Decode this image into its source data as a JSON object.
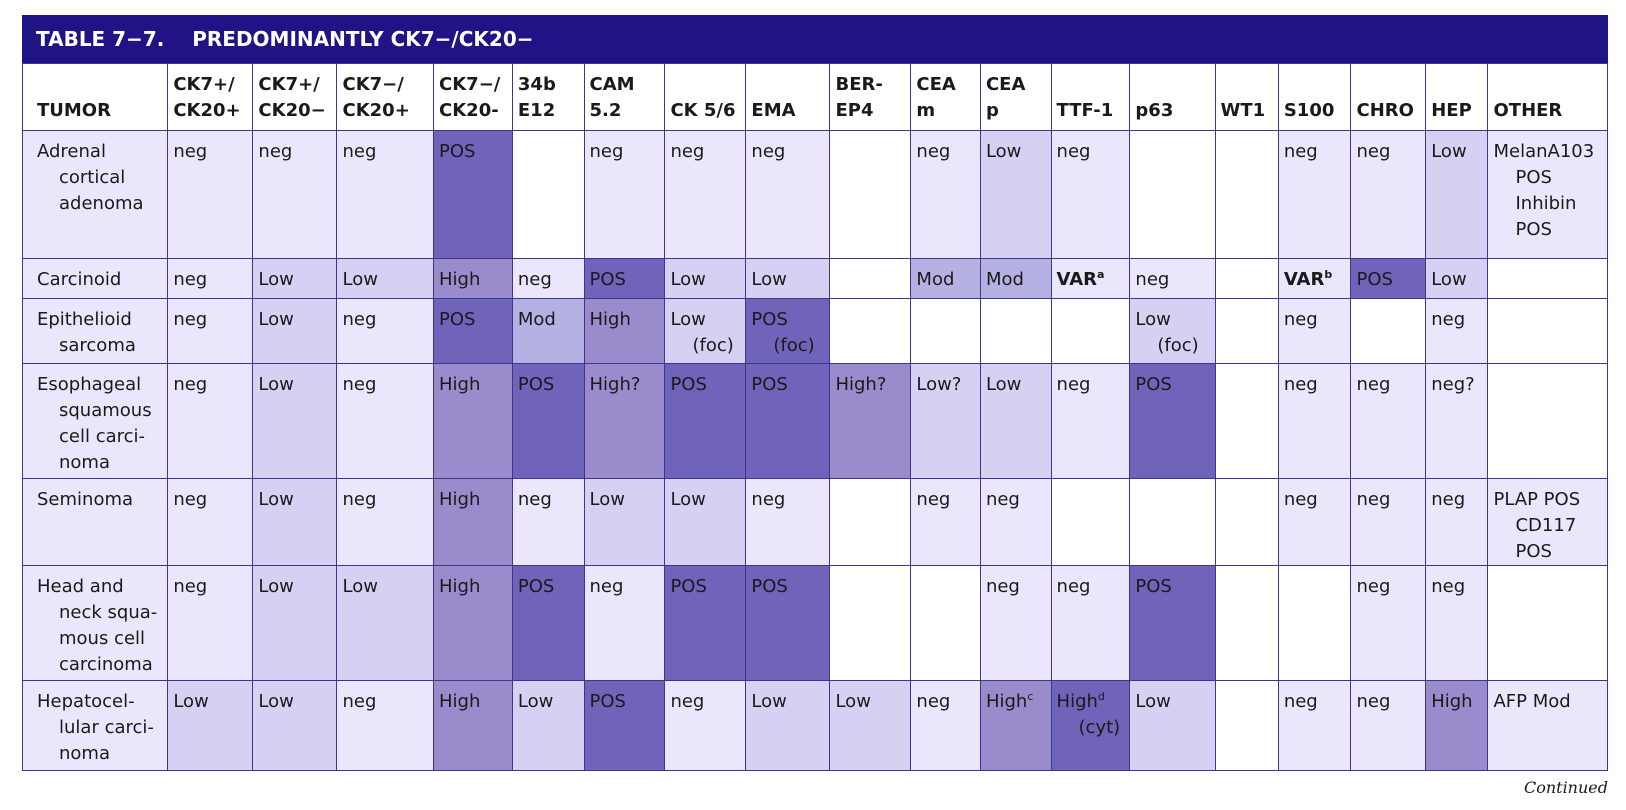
{
  "table": {
    "title_number": "TABLE 7−7.",
    "title_text": "PREDOMINANTLY CK7−/CK20−",
    "headers": [
      "TUMOR",
      "CK7+/\nCK20+",
      "CK7+/\nCK20−",
      "CK7−/\nCK20+",
      "CK7−/\nCK20-",
      "34b\nE12",
      "CAM\n5.2",
      "CK 5/6",
      "EMA",
      "BER-\nEP4",
      "CEA\nm",
      "CEA\np",
      "TTF-1",
      "p63",
      "WT1",
      "S100",
      "CHRO",
      "HEP",
      "OTHER"
    ],
    "shade_colors": {
      "0": "#ffffff",
      "1": "#ebe6fb",
      "2": "#d6d0f3",
      "3": "#b6b1e3",
      "4": "#9a8bcc",
      "5": "#7063ba"
    },
    "rows": [
      {
        "tumor": [
          "Adrenal",
          "cortical",
          "adenoma"
        ],
        "cells": [
          {
            "t": "neg",
            "s": 1
          },
          {
            "t": "neg",
            "s": 1
          },
          {
            "t": "neg",
            "s": 1
          },
          {
            "t": "POS",
            "s": 5
          },
          {
            "t": "",
            "s": 0
          },
          {
            "t": "neg",
            "s": 1
          },
          {
            "t": "neg",
            "s": 1
          },
          {
            "t": "neg",
            "s": 1
          },
          {
            "t": "",
            "s": 0
          },
          {
            "t": "neg",
            "s": 1
          },
          {
            "t": "Low",
            "s": 2
          },
          {
            "t": "neg",
            "s": 1
          },
          {
            "t": "",
            "s": 0
          },
          {
            "t": "",
            "s": 0
          },
          {
            "t": "neg",
            "s": 1
          },
          {
            "t": "neg",
            "s": 1
          },
          {
            "t": "Low",
            "s": 2
          },
          {
            "t": "MelanA103\nPOS\nInhibin\nPOS",
            "s": 1
          }
        ]
      },
      {
        "tumor": [
          "Carcinoid"
        ],
        "cells": [
          {
            "t": "neg",
            "s": 1
          },
          {
            "t": "Low",
            "s": 2
          },
          {
            "t": "Low",
            "s": 2
          },
          {
            "t": "High",
            "s": 4
          },
          {
            "t": "neg",
            "s": 1
          },
          {
            "t": "POS",
            "s": 5
          },
          {
            "t": "Low",
            "s": 2
          },
          {
            "t": "Low",
            "s": 2
          },
          {
            "t": "",
            "s": 0
          },
          {
            "t": "Mod",
            "s": 3
          },
          {
            "t": "Mod",
            "s": 3
          },
          {
            "t": "VAR",
            "sup": "a",
            "bold": true,
            "s": 1
          },
          {
            "t": "neg",
            "s": 1
          },
          {
            "t": "",
            "s": 0
          },
          {
            "t": "VAR",
            "sup": "b",
            "bold": true,
            "s": 1
          },
          {
            "t": "POS",
            "s": 5
          },
          {
            "t": "Low",
            "s": 2
          },
          {
            "t": "",
            "s": 0
          }
        ]
      },
      {
        "tumor": [
          "Epithelioid",
          "sarcoma"
        ],
        "cells": [
          {
            "t": "neg",
            "s": 1
          },
          {
            "t": "Low",
            "s": 2
          },
          {
            "t": "neg",
            "s": 1
          },
          {
            "t": "POS",
            "s": 5
          },
          {
            "t": "Mod",
            "s": 3
          },
          {
            "t": "High",
            "s": 4
          },
          {
            "t": "Low\n(foc)",
            "s": 2
          },
          {
            "t": "POS\n(foc)",
            "s": 5
          },
          {
            "t": "",
            "s": 0
          },
          {
            "t": "",
            "s": 0
          },
          {
            "t": "",
            "s": 0
          },
          {
            "t": "",
            "s": 0
          },
          {
            "t": "Low\n(foc)",
            "s": 2
          },
          {
            "t": "",
            "s": 0
          },
          {
            "t": "neg",
            "s": 1
          },
          {
            "t": "",
            "s": 0
          },
          {
            "t": "neg",
            "s": 1
          },
          {
            "t": "",
            "s": 0
          }
        ]
      },
      {
        "tumor": [
          "Esophageal",
          "squamous",
          "cell carci-",
          "noma"
        ],
        "cells": [
          {
            "t": "neg",
            "s": 1
          },
          {
            "t": "Low",
            "s": 2
          },
          {
            "t": "neg",
            "s": 1
          },
          {
            "t": "High",
            "s": 4
          },
          {
            "t": "POS",
            "s": 5
          },
          {
            "t": "High?",
            "s": 4
          },
          {
            "t": "POS",
            "s": 5
          },
          {
            "t": "POS",
            "s": 5
          },
          {
            "t": "High?",
            "s": 4
          },
          {
            "t": "Low?",
            "s": 2
          },
          {
            "t": "Low",
            "s": 2
          },
          {
            "t": "neg",
            "s": 1
          },
          {
            "t": "POS",
            "s": 5
          },
          {
            "t": "",
            "s": 0
          },
          {
            "t": "neg",
            "s": 1
          },
          {
            "t": "neg",
            "s": 1
          },
          {
            "t": "neg?",
            "s": 1
          },
          {
            "t": "",
            "s": 0
          }
        ]
      },
      {
        "tumor": [
          "Seminoma"
        ],
        "cells": [
          {
            "t": "neg",
            "s": 1
          },
          {
            "t": "Low",
            "s": 2
          },
          {
            "t": "neg",
            "s": 1
          },
          {
            "t": "High",
            "s": 4
          },
          {
            "t": "neg",
            "s": 1
          },
          {
            "t": "Low",
            "s": 2
          },
          {
            "t": "Low",
            "s": 2
          },
          {
            "t": "neg",
            "s": 1
          },
          {
            "t": "",
            "s": 0
          },
          {
            "t": "neg",
            "s": 1
          },
          {
            "t": "neg",
            "s": 1
          },
          {
            "t": "",
            "s": 0
          },
          {
            "t": "",
            "s": 0
          },
          {
            "t": "",
            "s": 0
          },
          {
            "t": "neg",
            "s": 1
          },
          {
            "t": "neg",
            "s": 1
          },
          {
            "t": "neg",
            "s": 1
          },
          {
            "t": "PLAP POS\nCD117 POS",
            "s": 1
          }
        ]
      },
      {
        "tumor": [
          "Head and",
          "neck squa-",
          "mous cell",
          "carcinoma"
        ],
        "cells": [
          {
            "t": "neg",
            "s": 1
          },
          {
            "t": "Low",
            "s": 2
          },
          {
            "t": "Low",
            "s": 2
          },
          {
            "t": "High",
            "s": 4
          },
          {
            "t": "POS",
            "s": 5
          },
          {
            "t": "neg",
            "s": 1
          },
          {
            "t": "POS",
            "s": 5
          },
          {
            "t": "POS",
            "s": 5
          },
          {
            "t": "",
            "s": 0
          },
          {
            "t": "",
            "s": 0
          },
          {
            "t": "neg",
            "s": 1
          },
          {
            "t": "neg",
            "s": 1
          },
          {
            "t": "POS",
            "s": 5
          },
          {
            "t": "",
            "s": 0
          },
          {
            "t": "",
            "s": 0
          },
          {
            "t": "neg",
            "s": 1
          },
          {
            "t": "neg",
            "s": 1
          },
          {
            "t": "",
            "s": 0
          }
        ]
      },
      {
        "tumor": [
          "Hepatocel-",
          "lular carci-",
          "noma"
        ],
        "cells": [
          {
            "t": "Low",
            "s": 2
          },
          {
            "t": "Low",
            "s": 2
          },
          {
            "t": "neg",
            "s": 1
          },
          {
            "t": "High",
            "s": 4
          },
          {
            "t": "Low",
            "s": 2
          },
          {
            "t": "POS",
            "s": 5
          },
          {
            "t": "neg",
            "s": 1
          },
          {
            "t": "Low",
            "s": 2
          },
          {
            "t": "Low",
            "s": 2
          },
          {
            "t": "neg",
            "s": 1
          },
          {
            "t": "High",
            "sup": "c",
            "s": 4
          },
          {
            "t": "High",
            "sup": "d",
            "t2": "(cyt)",
            "s": 5
          },
          {
            "t": "Low",
            "s": 2
          },
          {
            "t": "",
            "s": 0
          },
          {
            "t": "neg",
            "s": 1
          },
          {
            "t": "neg",
            "s": 1
          },
          {
            "t": "High",
            "s": 4
          },
          {
            "t": "AFP Mod",
            "s": 1
          }
        ]
      }
    ],
    "footer": "Continued"
  }
}
